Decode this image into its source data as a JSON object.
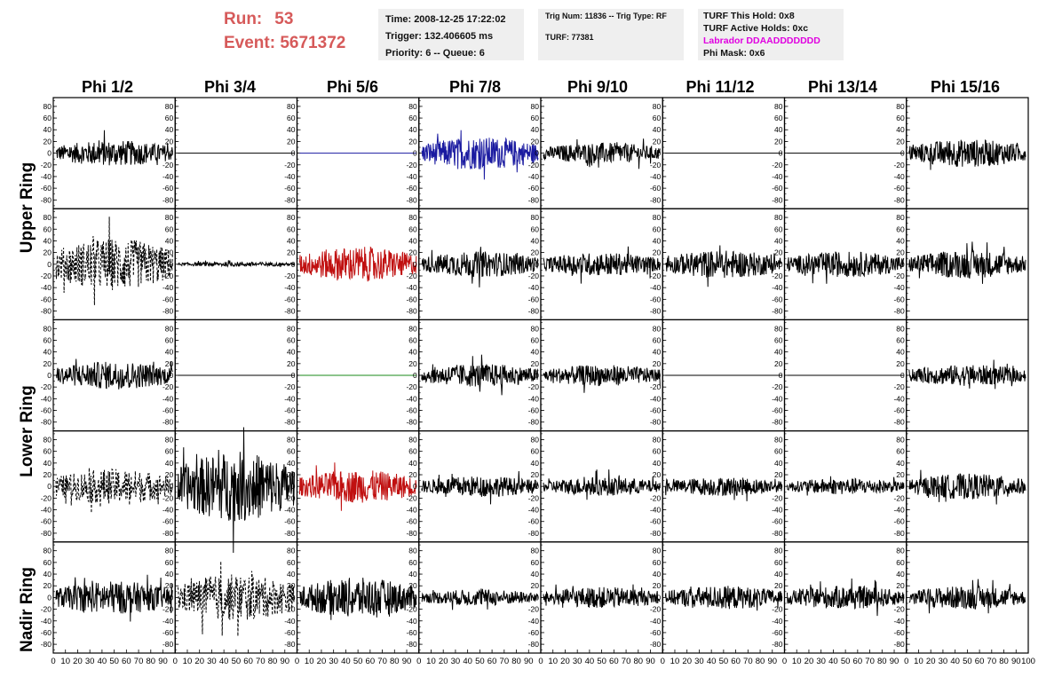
{
  "header": {
    "run_label": "Run:",
    "run_value": "53",
    "event_label": "Event:",
    "event_value": "5671372",
    "time": "Time: 2008-12-25 17:22:02",
    "trigger": "Trigger: 132.406605 ms",
    "priority": "Priority: 6 -- Queue: 6",
    "trig_num": "Trig Num: 11836 -- Trig Type: RF",
    "turf": "TURF: 77381",
    "turf_this_hold": "TURF This Hold: 0x8",
    "turf_active_holds": "TURF Active Holds: 0xc",
    "labrador": "Labrador DDAADDDDDDD",
    "phi_mask": "Phi Mask: 0x6"
  },
  "columns": [
    "Phi 1/2",
    "Phi 3/4",
    "Phi 5/6",
    "Phi 7/8",
    "Phi 9/10",
    "Phi 11/12",
    "Phi 13/14",
    "Phi 15/16"
  ],
  "ring_labels": [
    "Upper Ring",
    "Lower Ring",
    "Nadir Ring"
  ],
  "y_ticks": [
    "80",
    "60",
    "40",
    "20",
    "0",
    "-20",
    "-40",
    "-60",
    "-80"
  ],
  "x_ticks": [
    "0",
    "10",
    "20",
    "30",
    "40",
    "50",
    "60",
    "70",
    "80",
    "90",
    "100"
  ],
  "chart_data": {
    "type": "line",
    "description_rows": 5,
    "ylim": [
      -95,
      95
    ],
    "xlim": [
      0,
      100
    ],
    "grid": false,
    "panels": [
      [
        {
          "amp": 22,
          "style": "solid",
          "color": "#000000"
        },
        {
          "amp": 0,
          "style": "solid",
          "color": "#000000"
        },
        {
          "amp": 0,
          "style": "solid",
          "color": "#1a1aa0"
        },
        {
          "amp": 28,
          "style": "solid",
          "color": "#1a1aa0"
        },
        {
          "amp": 18,
          "style": "solid",
          "color": "#000000"
        },
        {
          "amp": 0,
          "style": "solid",
          "color": "#000000"
        },
        {
          "amp": 0,
          "style": "solid",
          "color": "#000000"
        },
        {
          "amp": 24,
          "style": "solid",
          "color": "#000000"
        }
      ],
      [
        {
          "amp": 45,
          "style": "dashed",
          "color": "#000000"
        },
        {
          "amp": 4,
          "style": "solid",
          "color": "#000000"
        },
        {
          "amp": 30,
          "style": "solid",
          "color": "#c01010"
        },
        {
          "amp": 22,
          "style": "solid",
          "color": "#000000"
        },
        {
          "amp": 20,
          "style": "solid",
          "color": "#000000"
        },
        {
          "amp": 24,
          "style": "solid",
          "color": "#000000"
        },
        {
          "amp": 22,
          "style": "solid",
          "color": "#000000"
        },
        {
          "amp": 24,
          "style": "solid",
          "color": "#000000"
        }
      ],
      [
        {
          "amp": 24,
          "style": "solid",
          "color": "#000000"
        },
        {
          "amp": 0,
          "style": "solid",
          "color": "#000000"
        },
        {
          "amp": 0,
          "style": "solid",
          "color": "#1a8a1a"
        },
        {
          "amp": 20,
          "style": "solid",
          "color": "#000000"
        },
        {
          "amp": 18,
          "style": "solid",
          "color": "#000000"
        },
        {
          "amp": 0,
          "style": "solid",
          "color": "#000000"
        },
        {
          "amp": 0,
          "style": "solid",
          "color": "#000000"
        },
        {
          "amp": 18,
          "style": "solid",
          "color": "#000000"
        }
      ],
      [
        {
          "amp": 30,
          "style": "dashed",
          "color": "#000000"
        },
        {
          "amp": 60,
          "style": "solid",
          "color": "#000000"
        },
        {
          "amp": 28,
          "style": "solid",
          "color": "#c01010"
        },
        {
          "amp": 18,
          "style": "solid",
          "color": "#000000"
        },
        {
          "amp": 16,
          "style": "solid",
          "color": "#000000"
        },
        {
          "amp": 16,
          "style": "solid",
          "color": "#000000"
        },
        {
          "amp": 14,
          "style": "solid",
          "color": "#000000"
        },
        {
          "amp": 22,
          "style": "solid",
          "color": "#000000"
        }
      ],
      [
        {
          "amp": 28,
          "style": "solid",
          "color": "#000000"
        },
        {
          "amp": 40,
          "style": "dashed",
          "color": "#000000"
        },
        {
          "amp": 34,
          "style": "solid",
          "color": "#000000"
        },
        {
          "amp": 14,
          "style": "solid",
          "color": "#000000"
        },
        {
          "amp": 18,
          "style": "solid",
          "color": "#000000"
        },
        {
          "amp": 20,
          "style": "solid",
          "color": "#000000"
        },
        {
          "amp": 20,
          "style": "solid",
          "color": "#000000"
        },
        {
          "amp": 20,
          "style": "solid",
          "color": "#000000"
        }
      ]
    ]
  }
}
